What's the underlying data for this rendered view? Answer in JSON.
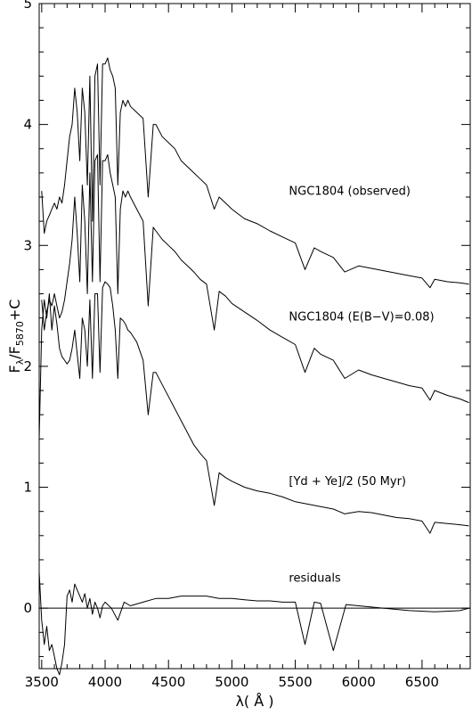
{
  "chart_data": {
    "type": "line",
    "xlabel": "λ( Å )",
    "ylabel": "Fλ/F5870+C",
    "ylabel_parts": {
      "main": "F",
      "sub1": "λ",
      "slash": "/F",
      "sub2": "5870",
      "tail": "+C"
    },
    "xlim": [
      3480,
      6880
    ],
    "ylim": [
      -0.5,
      5.0
    ],
    "x_ticks": [
      3500,
      4000,
      4500,
      5000,
      5500,
      6000,
      6500
    ],
    "x_tick_labels": [
      "3500",
      "4000",
      "4500",
      "5000",
      "5500",
      "6000",
      "6500"
    ],
    "y_ticks": [
      0,
      1,
      2,
      3,
      4,
      5
    ],
    "y_tick_labels": [
      "0",
      "1",
      "2",
      "3",
      "4",
      "5"
    ],
    "zero_line": 0,
    "grid": false,
    "annotations": [
      {
        "text": "NGC1804 (observed)",
        "x": 5450,
        "y": 3.42
      },
      {
        "text": "NGC1804 (E(B−V)=0.08)",
        "x": 5450,
        "y": 2.38
      },
      {
        "text": "[Yd + Ye]/2 (50 Myr)",
        "x": 5450,
        "y": 1.02
      },
      {
        "text": "residuals",
        "x": 5450,
        "y": 0.22
      }
    ],
    "series": [
      {
        "x": [
          3500,
          3520,
          3540,
          3560,
          3580,
          3600,
          3620,
          3640,
          3660,
          3680,
          3700,
          3720,
          3740,
          3760,
          3780,
          3800,
          3820,
          3840,
          3860,
          3880,
          3900,
          3920,
          3940,
          3960,
          3980,
          4000,
          4020,
          4040,
          4060,
          4080,
          4100,
          4120,
          4140,
          4160,
          4180,
          4200,
          4250,
          4300,
          4340,
          4380,
          4400,
          4450,
          4500,
          4550,
          4600,
          4650,
          4700,
          4750,
          4800,
          4861,
          4900,
          4950,
          5000,
          5100,
          5200,
          5300,
          5400,
          5500,
          5577,
          5650,
          5700,
          5800,
          5890,
          6000,
          6100,
          6200,
          6300,
          6400,
          6500,
          6563,
          6600,
          6700,
          6800,
          6870
        ],
        "values": [
          3.45,
          3.1,
          3.2,
          3.25,
          3.3,
          3.35,
          3.3,
          3.4,
          3.35,
          3.5,
          3.7,
          3.9,
          4.0,
          4.3,
          4.1,
          3.7,
          4.3,
          4.1,
          3.5,
          4.4,
          3.2,
          4.4,
          4.5,
          3.5,
          4.5,
          4.5,
          4.55,
          4.45,
          4.4,
          4.3,
          3.5,
          4.1,
          4.2,
          4.15,
          4.2,
          4.15,
          4.1,
          4.05,
          3.4,
          4.0,
          4.0,
          3.9,
          3.85,
          3.8,
          3.7,
          3.65,
          3.6,
          3.55,
          3.5,
          3.3,
          3.4,
          3.35,
          3.3,
          3.22,
          3.18,
          3.12,
          3.07,
          3.02,
          2.8,
          2.98,
          2.95,
          2.9,
          2.78,
          2.83,
          2.81,
          2.79,
          2.77,
          2.75,
          2.73,
          2.65,
          2.72,
          2.7,
          2.69,
          2.68
        ]
      },
      {
        "x": [
          3500,
          3520,
          3540,
          3560,
          3580,
          3600,
          3620,
          3640,
          3660,
          3680,
          3700,
          3720,
          3740,
          3760,
          3780,
          3800,
          3820,
          3840,
          3860,
          3880,
          3900,
          3920,
          3940,
          3960,
          3980,
          4000,
          4020,
          4040,
          4060,
          4080,
          4100,
          4120,
          4140,
          4160,
          4180,
          4200,
          4250,
          4300,
          4340,
          4380,
          4400,
          4450,
          4500,
          4550,
          4600,
          4650,
          4700,
          4750,
          4800,
          4861,
          4900,
          4950,
          5000,
          5100,
          5200,
          5300,
          5400,
          5500,
          5577,
          5650,
          5700,
          5800,
          5890,
          6000,
          6100,
          6200,
          6300,
          6400,
          6500,
          6563,
          6600,
          6700,
          6800,
          6870
        ],
        "values": [
          2.55,
          2.3,
          2.45,
          2.55,
          2.5,
          2.6,
          2.5,
          2.4,
          2.45,
          2.55,
          2.7,
          2.85,
          3.05,
          3.4,
          3.1,
          2.7,
          3.5,
          3.2,
          2.6,
          3.6,
          2.7,
          3.7,
          3.75,
          2.7,
          3.7,
          3.7,
          3.75,
          3.6,
          3.5,
          3.4,
          2.6,
          3.3,
          3.45,
          3.4,
          3.45,
          3.4,
          3.3,
          3.2,
          2.5,
          3.15,
          3.12,
          3.05,
          3.0,
          2.95,
          2.88,
          2.83,
          2.78,
          2.72,
          2.68,
          2.3,
          2.62,
          2.58,
          2.52,
          2.45,
          2.38,
          2.3,
          2.24,
          2.18,
          1.95,
          2.15,
          2.1,
          2.05,
          1.9,
          1.97,
          1.93,
          1.9,
          1.87,
          1.84,
          1.82,
          1.72,
          1.8,
          1.76,
          1.73,
          1.7
        ]
      },
      {
        "x": [
          3480,
          3500,
          3520,
          3540,
          3560,
          3580,
          3600,
          3620,
          3640,
          3660,
          3680,
          3700,
          3720,
          3740,
          3760,
          3780,
          3800,
          3820,
          3840,
          3860,
          3880,
          3900,
          3920,
          3940,
          3960,
          3980,
          4000,
          4020,
          4040,
          4060,
          4080,
          4100,
          4120,
          4140,
          4160,
          4180,
          4200,
          4250,
          4300,
          4340,
          4380,
          4400,
          4450,
          4500,
          4550,
          4600,
          4650,
          4700,
          4750,
          4800,
          4861,
          4900,
          4950,
          5000,
          5100,
          5200,
          5300,
          5400,
          5500,
          5600,
          5700,
          5800,
          5890,
          6000,
          6100,
          6200,
          6300,
          6400,
          6500,
          6563,
          6600,
          6700,
          6800,
          6870
        ],
        "values": [
          1.4,
          2.3,
          2.55,
          2.4,
          2.6,
          2.3,
          2.5,
          2.35,
          2.15,
          2.08,
          2.05,
          2.02,
          2.05,
          2.15,
          2.3,
          2.1,
          1.9,
          2.4,
          2.3,
          2.0,
          2.55,
          1.9,
          2.6,
          2.6,
          1.95,
          2.65,
          2.7,
          2.68,
          2.65,
          2.5,
          2.3,
          1.9,
          2.4,
          2.38,
          2.35,
          2.3,
          2.28,
          2.2,
          2.05,
          1.6,
          1.95,
          1.95,
          1.85,
          1.75,
          1.65,
          1.55,
          1.45,
          1.35,
          1.28,
          1.22,
          0.85,
          1.12,
          1.08,
          1.05,
          1.0,
          0.97,
          0.95,
          0.92,
          0.88,
          0.86,
          0.84,
          0.82,
          0.78,
          0.8,
          0.79,
          0.77,
          0.75,
          0.74,
          0.72,
          0.62,
          0.71,
          0.7,
          0.69,
          0.68
        ]
      },
      {
        "x": [
          3480,
          3500,
          3520,
          3540,
          3560,
          3580,
          3600,
          3620,
          3640,
          3660,
          3680,
          3700,
          3720,
          3740,
          3760,
          3780,
          3800,
          3820,
          3840,
          3860,
          3880,
          3900,
          3920,
          3940,
          3960,
          3980,
          4000,
          4050,
          4100,
          4150,
          4200,
          4300,
          4400,
          4500,
          4600,
          4700,
          4800,
          4900,
          5000,
          5100,
          5200,
          5300,
          5400,
          5500,
          5577,
          5650,
          5700,
          5800,
          5900,
          6000,
          6200,
          6400,
          6600,
          6800,
          6870
        ],
        "values": [
          0.3,
          -0.1,
          -0.3,
          -0.15,
          -0.35,
          -0.3,
          -0.4,
          -0.5,
          -0.55,
          -0.45,
          -0.3,
          0.1,
          0.15,
          0.05,
          0.2,
          0.15,
          0.1,
          0.05,
          0.12,
          0.0,
          0.08,
          -0.05,
          0.05,
          0.0,
          -0.08,
          0.02,
          0.05,
          0.0,
          -0.1,
          0.05,
          0.02,
          0.05,
          0.08,
          0.08,
          0.1,
          0.1,
          0.1,
          0.08,
          0.08,
          0.07,
          0.06,
          0.06,
          0.05,
          0.05,
          -0.3,
          0.05,
          0.04,
          -0.35,
          0.03,
          0.02,
          0.0,
          -0.02,
          -0.03,
          -0.02,
          0.0
        ]
      }
    ]
  }
}
